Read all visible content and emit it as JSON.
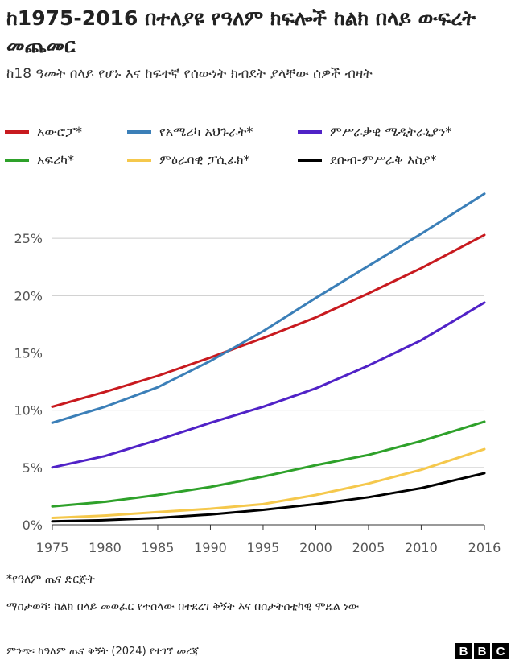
{
  "header": {
    "title": "ከ1975-2016 በተለያዩ የዓለም ክፍሎች ከልክ በላይ ውፍረት መጨመር",
    "subtitle": "ከ18 ዓመት በላይ የሆኑ እና ከፍተኛ የሰውነት ክብደት ያላቸው ሰዎች ብዛት"
  },
  "legend": [
    {
      "label": "አውሮፓ*",
      "color": "#c81a1f"
    },
    {
      "label": "የአሜሪካ አህጉራት*",
      "color": "#3b7fb8"
    },
    {
      "label": "ምሥራቃዊ ሜዲትራኒያን*",
      "color": "#5022c7"
    },
    {
      "label": "አፍሪካ*",
      "color": "#2ea12a"
    },
    {
      "label": "ምዕራባዊ ፓሲፊክ*",
      "color": "#f5c84c"
    },
    {
      "label": "ደቡብ-ምሥራቅ እስያ*",
      "color": "#000000"
    }
  ],
  "footer": {
    "note1": "*የዓለም ጤና ድርጅት",
    "note2": "ማስታወሻ፡ ከልክ በላይ መወፈር የተሰላው በተደረገ ቅኝት እና በስታትስቲካዊ ሞዴል ነው",
    "source": "ምንጭ፡ ከዓለም ጤና ቅኝት (2024) የተገኘ መረጃ",
    "logo": [
      "B",
      "B",
      "C"
    ]
  },
  "chart_data": {
    "type": "line",
    "title": "ከ1975-2016 በተለያዩ የዓለም ክፍሎች ከልክ በላይ ውፍረት መጨመር",
    "xlabel": "",
    "ylabel": "ከ18 ዓመት በላይ የሆኑ እና ከፍተኛ የሰውነት ክብደት ያላቸው ሰዎች ብዛት",
    "xlim": [
      1975,
      2016
    ],
    "ylim": [
      0,
      30
    ],
    "x_ticks": [
      1975,
      1980,
      1985,
      1990,
      1995,
      2000,
      2005,
      2010,
      2016
    ],
    "y_ticks": [
      0,
      5,
      10,
      15,
      20,
      25
    ],
    "y_tick_labels": [
      "0%",
      "5%",
      "10%",
      "15%",
      "20%",
      "25%"
    ],
    "series": [
      {
        "name": "አውሮፓ*",
        "color": "#c81a1f",
        "x": [
          1975,
          1980,
          1985,
          1990,
          1995,
          2000,
          2005,
          2010,
          2016
        ],
        "values": [
          10.3,
          11.6,
          13.0,
          14.6,
          16.3,
          18.1,
          20.2,
          22.4,
          25.3
        ]
      },
      {
        "name": "የአሜሪካ አህጉራት*",
        "color": "#3b7fb8",
        "x": [
          1975,
          1980,
          1985,
          1990,
          1995,
          2000,
          2005,
          2010,
          2016
        ],
        "values": [
          8.9,
          10.3,
          12.0,
          14.3,
          16.9,
          19.8,
          22.6,
          25.4,
          28.9
        ]
      },
      {
        "name": "ምሥራቃዊ ሜዲትራኒያን*",
        "color": "#5022c7",
        "x": [
          1975,
          1980,
          1985,
          1990,
          1995,
          2000,
          2005,
          2010,
          2016
        ],
        "values": [
          5.0,
          6.0,
          7.4,
          8.9,
          10.3,
          11.9,
          13.9,
          16.1,
          19.4
        ]
      },
      {
        "name": "አፍሪካ*",
        "color": "#2ea12a",
        "x": [
          1975,
          1980,
          1985,
          1990,
          1995,
          2000,
          2005,
          2010,
          2016
        ],
        "values": [
          1.6,
          2.0,
          2.6,
          3.3,
          4.2,
          5.2,
          6.1,
          7.3,
          9.0
        ]
      },
      {
        "name": "ምዕራባዊ ፓሲፊክ*",
        "color": "#f5c84c",
        "x": [
          1975,
          1980,
          1985,
          1990,
          1995,
          2000,
          2005,
          2010,
          2016
        ],
        "values": [
          0.6,
          0.8,
          1.1,
          1.4,
          1.8,
          2.6,
          3.6,
          4.8,
          6.6
        ]
      },
      {
        "name": "ደቡብ-ምሥራቅ እስያ*",
        "color": "#000000",
        "x": [
          1975,
          1980,
          1985,
          1990,
          1995,
          2000,
          2005,
          2010,
          2016
        ],
        "values": [
          0.3,
          0.4,
          0.6,
          0.9,
          1.3,
          1.8,
          2.4,
          3.2,
          4.5
        ]
      }
    ]
  }
}
